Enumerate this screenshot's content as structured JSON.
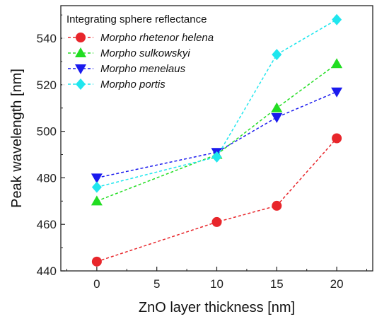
{
  "chart_data": {
    "type": "line",
    "xlabel": "ZnO layer thickness [nm]",
    "ylabel": "Peak wavelength [nm]",
    "xlim": [
      -3,
      23
    ],
    "ylim": [
      440,
      554
    ],
    "xticks": [
      0,
      5,
      10,
      15,
      20
    ],
    "yticks": [
      440,
      460,
      480,
      500,
      520,
      540
    ],
    "grid": false,
    "legend": {
      "title": "Integrating sphere reflectance",
      "placement": "top-left"
    },
    "x": [
      0,
      10,
      15,
      20
    ],
    "series": [
      {
        "name": "Morpho rhetenor helena",
        "color": "#e8262b",
        "marker": "circle",
        "values": [
          444,
          461,
          468,
          497
        ]
      },
      {
        "name": "Morpho sulkowskyi",
        "color": "#22dd22",
        "marker": "triangle-up",
        "values": [
          470,
          490,
          510,
          529
        ]
      },
      {
        "name": "Morpho menelaus",
        "color": "#1a1aee",
        "marker": "triangle-down",
        "values": [
          480,
          491,
          506,
          517
        ]
      },
      {
        "name": "Morpho portis",
        "color": "#1fe6ee",
        "marker": "diamond",
        "values": [
          476,
          489,
          533,
          548
        ]
      }
    ]
  }
}
